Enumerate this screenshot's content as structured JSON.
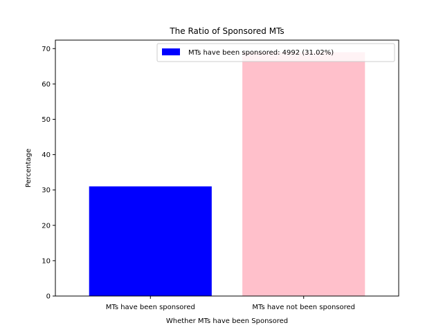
{
  "chart_data": {
    "type": "bar",
    "title": "The Ratio of Sponsored MTs",
    "xlabel": "Whether MTs have been Sponsored",
    "ylabel": "Percentage",
    "categories": [
      "MTs have been sponsored",
      "MTs have not been sponsored"
    ],
    "values": [
      31.02,
      68.98
    ],
    "bar_colors": [
      "#0000ff",
      "#ffc0cb"
    ],
    "ylim": [
      0,
      72.4
    ],
    "yticks": [
      0,
      10,
      20,
      30,
      40,
      50,
      60,
      70
    ],
    "grid": false,
    "legend": {
      "placement": "top-right",
      "entries": [
        {
          "label": "MTs have been sponsored: 4992 (31.02%)",
          "color": "#0000ff"
        }
      ]
    }
  }
}
